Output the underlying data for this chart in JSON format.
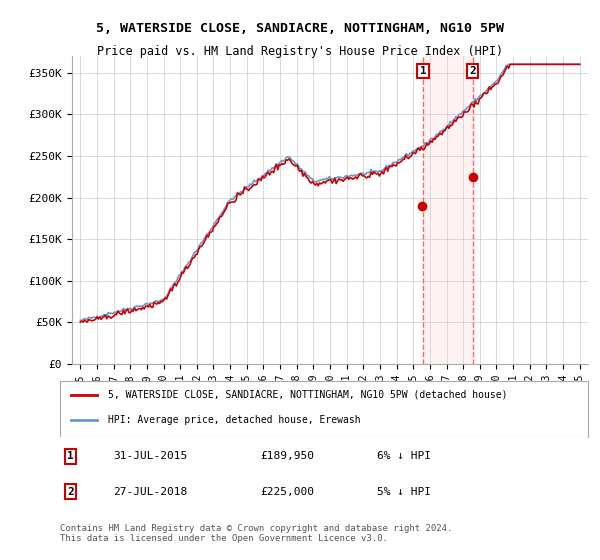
{
  "title1": "5, WATERSIDE CLOSE, SANDIACRE, NOTTINGHAM, NG10 5PW",
  "title2": "Price paid vs. HM Land Registry's House Price Index (HPI)",
  "ylabel_ticks": [
    "£0",
    "£50K",
    "£100K",
    "£150K",
    "£200K",
    "£250K",
    "£300K",
    "£350K"
  ],
  "ytick_vals": [
    0,
    50000,
    100000,
    150000,
    200000,
    250000,
    300000,
    350000
  ],
  "ylim": [
    0,
    370000
  ],
  "sale1_date_idx": 20.58,
  "sale1_price": 189950,
  "sale2_date_idx": 23.58,
  "sale2_price": 225000,
  "legend_line1": "5, WATERSIDE CLOSE, SANDIACRE, NOTTINGHAM, NG10 5PW (detached house)",
  "legend_line2": "HPI: Average price, detached house, Erewash",
  "annotation1_label": "1",
  "annotation1_date": "31-JUL-2015",
  "annotation1_price": "£189,950",
  "annotation1_note": "6% ↓ HPI",
  "annotation2_label": "2",
  "annotation2_date": "27-JUL-2018",
  "annotation2_price": "£225,000",
  "annotation2_note": "5% ↓ HPI",
  "footer": "Contains HM Land Registry data © Crown copyright and database right 2024.\nThis data is licensed under the Open Government Licence v3.0.",
  "line_color_hpi": "#6699cc",
  "line_color_price": "#cc0000",
  "background_color": "#ffffff",
  "plot_bg_color": "#ffffff",
  "grid_color": "#cccccc"
}
